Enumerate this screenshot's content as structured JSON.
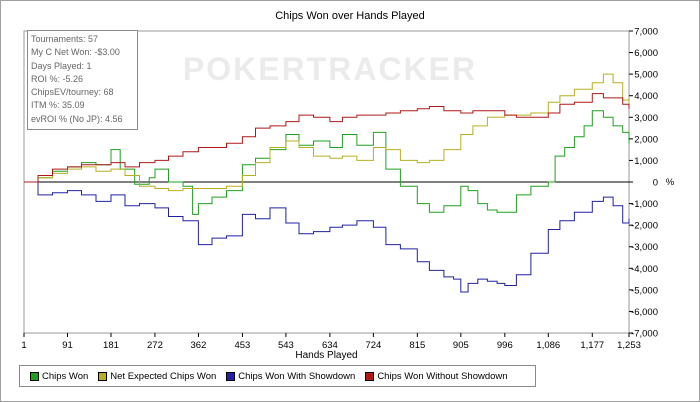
{
  "chart_data": {
    "type": "line",
    "title": "Chips Won over Hands Played",
    "xlabel": "Hands Played",
    "ylabel": "",
    "y_unit_label": "%",
    "xlim": [
      1,
      1253
    ],
    "ylim": [
      -7000,
      7000
    ],
    "x_ticks": [
      1,
      91,
      181,
      272,
      362,
      453,
      543,
      634,
      724,
      815,
      905,
      996,
      1086,
      1177,
      1253
    ],
    "x_tick_labels": [
      "1",
      "91",
      "181",
      "272",
      "362",
      "453",
      "543",
      "634",
      "724",
      "815",
      "905",
      "996",
      "1,086",
      "1,177",
      "1,253"
    ],
    "y_ticks": [
      -7000,
      -6000,
      -5000,
      -4000,
      -3000,
      -2000,
      -1000,
      0,
      1000,
      2000,
      3000,
      4000,
      5000,
      6000,
      7000
    ],
    "y_tick_labels": [
      "-7,000",
      "-6,000",
      "-5,000",
      "-4,000",
      "-3,000",
      "-2,000",
      "-1,000",
      "0",
      "1,000",
      "2,000",
      "3,000",
      "4,000",
      "5,000",
      "6,000",
      "7,000"
    ],
    "watermark": "POKERTRACKER",
    "legend_position": "bottom-left",
    "series": [
      {
        "name": "Chips Won",
        "color": "#1ea01e",
        "points": [
          [
            1,
            0
          ],
          [
            30,
            200
          ],
          [
            60,
            500
          ],
          [
            91,
            700
          ],
          [
            120,
            900
          ],
          [
            150,
            800
          ],
          [
            181,
            1500
          ],
          [
            200,
            600
          ],
          [
            230,
            -100
          ],
          [
            260,
            200
          ],
          [
            272,
            600
          ],
          [
            300,
            0
          ],
          [
            330,
            -200
          ],
          [
            350,
            -1500
          ],
          [
            362,
            -1000
          ],
          [
            390,
            -700
          ],
          [
            420,
            -400
          ],
          [
            453,
            800
          ],
          [
            480,
            1100
          ],
          [
            510,
            1500
          ],
          [
            543,
            2200
          ],
          [
            570,
            1700
          ],
          [
            600,
            1900
          ],
          [
            634,
            1600
          ],
          [
            660,
            2200
          ],
          [
            690,
            1700
          ],
          [
            724,
            2300
          ],
          [
            750,
            600
          ],
          [
            780,
            -200
          ],
          [
            815,
            -1000
          ],
          [
            840,
            -1400
          ],
          [
            870,
            -1100
          ],
          [
            905,
            -200
          ],
          [
            920,
            -400
          ],
          [
            940,
            -1000
          ],
          [
            960,
            -1300
          ],
          [
            980,
            -1400
          ],
          [
            996,
            -1400
          ],
          [
            1020,
            -600
          ],
          [
            1050,
            -200
          ],
          [
            1086,
            0
          ],
          [
            1100,
            1200
          ],
          [
            1120,
            1600
          ],
          [
            1140,
            2100
          ],
          [
            1160,
            2600
          ],
          [
            1177,
            3300
          ],
          [
            1200,
            3000
          ],
          [
            1220,
            2600
          ],
          [
            1240,
            2300
          ],
          [
            1253,
            1800
          ]
        ]
      },
      {
        "name": "Net Expected Chips Won",
        "color": "#b8b020",
        "points": [
          [
            1,
            0
          ],
          [
            30,
            200
          ],
          [
            60,
            400
          ],
          [
            91,
            600
          ],
          [
            120,
            700
          ],
          [
            150,
            500
          ],
          [
            181,
            600
          ],
          [
            210,
            300
          ],
          [
            240,
            -200
          ],
          [
            272,
            -300
          ],
          [
            300,
            -400
          ],
          [
            330,
            -300
          ],
          [
            362,
            -300
          ],
          [
            390,
            -300
          ],
          [
            420,
            -200
          ],
          [
            453,
            300
          ],
          [
            480,
            900
          ],
          [
            510,
            1600
          ],
          [
            543,
            1900
          ],
          [
            570,
            1600
          ],
          [
            600,
            1200
          ],
          [
            634,
            1100
          ],
          [
            660,
            1200
          ],
          [
            690,
            1000
          ],
          [
            724,
            1600
          ],
          [
            750,
            1500
          ],
          [
            780,
            1000
          ],
          [
            815,
            900
          ],
          [
            840,
            1000
          ],
          [
            870,
            1500
          ],
          [
            905,
            2200
          ],
          [
            930,
            2600
          ],
          [
            960,
            3000
          ],
          [
            996,
            3100
          ],
          [
            1020,
            3100
          ],
          [
            1050,
            3200
          ],
          [
            1086,
            3700
          ],
          [
            1110,
            4000
          ],
          [
            1140,
            4300
          ],
          [
            1177,
            4600
          ],
          [
            1200,
            5000
          ],
          [
            1220,
            4600
          ],
          [
            1240,
            3800
          ],
          [
            1253,
            3500
          ]
        ]
      },
      {
        "name": "Chips Won With Showdown",
        "color": "#2020a8",
        "points": [
          [
            1,
            0
          ],
          [
            30,
            -600
          ],
          [
            60,
            -500
          ],
          [
            91,
            -400
          ],
          [
            120,
            -600
          ],
          [
            150,
            -900
          ],
          [
            181,
            -600
          ],
          [
            210,
            -1100
          ],
          [
            240,
            -1000
          ],
          [
            272,
            -1200
          ],
          [
            300,
            -1600
          ],
          [
            330,
            -1800
          ],
          [
            362,
            -2900
          ],
          [
            390,
            -2600
          ],
          [
            420,
            -2500
          ],
          [
            453,
            -1500
          ],
          [
            480,
            -1700
          ],
          [
            510,
            -1200
          ],
          [
            543,
            -1900
          ],
          [
            570,
            -2400
          ],
          [
            600,
            -2300
          ],
          [
            634,
            -2100
          ],
          [
            660,
            -2000
          ],
          [
            690,
            -1800
          ],
          [
            724,
            -2100
          ],
          [
            750,
            -2900
          ],
          [
            780,
            -3100
          ],
          [
            815,
            -3700
          ],
          [
            840,
            -4100
          ],
          [
            870,
            -4400
          ],
          [
            890,
            -4500
          ],
          [
            905,
            -5100
          ],
          [
            920,
            -4700
          ],
          [
            940,
            -4500
          ],
          [
            960,
            -4600
          ],
          [
            980,
            -4700
          ],
          [
            996,
            -4800
          ],
          [
            1020,
            -4300
          ],
          [
            1050,
            -3300
          ],
          [
            1086,
            -2200
          ],
          [
            1110,
            -1800
          ],
          [
            1140,
            -1400
          ],
          [
            1177,
            -900
          ],
          [
            1200,
            -700
          ],
          [
            1220,
            -1100
          ],
          [
            1240,
            -1900
          ],
          [
            1253,
            -1700
          ]
        ]
      },
      {
        "name": "Chips Won Without Showdown",
        "color": "#b01818",
        "points": [
          [
            1,
            0
          ],
          [
            30,
            300
          ],
          [
            60,
            600
          ],
          [
            91,
            700
          ],
          [
            120,
            800
          ],
          [
            150,
            800
          ],
          [
            181,
            900
          ],
          [
            210,
            700
          ],
          [
            240,
            900
          ],
          [
            272,
            1000
          ],
          [
            300,
            1200
          ],
          [
            330,
            1400
          ],
          [
            362,
            1600
          ],
          [
            390,
            1600
          ],
          [
            420,
            1800
          ],
          [
            453,
            2100
          ],
          [
            480,
            2500
          ],
          [
            510,
            2600
          ],
          [
            543,
            2800
          ],
          [
            570,
            3100
          ],
          [
            600,
            3000
          ],
          [
            634,
            2800
          ],
          [
            660,
            3000
          ],
          [
            690,
            3100
          ],
          [
            724,
            3100
          ],
          [
            750,
            3200
          ],
          [
            780,
            3300
          ],
          [
            815,
            3400
          ],
          [
            840,
            3500
          ],
          [
            870,
            3300
          ],
          [
            905,
            3200
          ],
          [
            930,
            3300
          ],
          [
            960,
            3300
          ],
          [
            996,
            3100
          ],
          [
            1020,
            3000
          ],
          [
            1050,
            3000
          ],
          [
            1086,
            3200
          ],
          [
            1110,
            3600
          ],
          [
            1140,
            3700
          ],
          [
            1177,
            4100
          ],
          [
            1200,
            3900
          ],
          [
            1220,
            3900
          ],
          [
            1240,
            3600
          ],
          [
            1253,
            3400
          ]
        ]
      }
    ]
  },
  "stats_box": {
    "lines": [
      "Tournaments: 57",
      "My C Net Won: -$3.00",
      "Days Played: 1",
      "ROI %: -5.26",
      "ChipsEV/tourney: 68",
      "ITM %: 35.09",
      "evROI % (No JP): 4.56"
    ]
  }
}
